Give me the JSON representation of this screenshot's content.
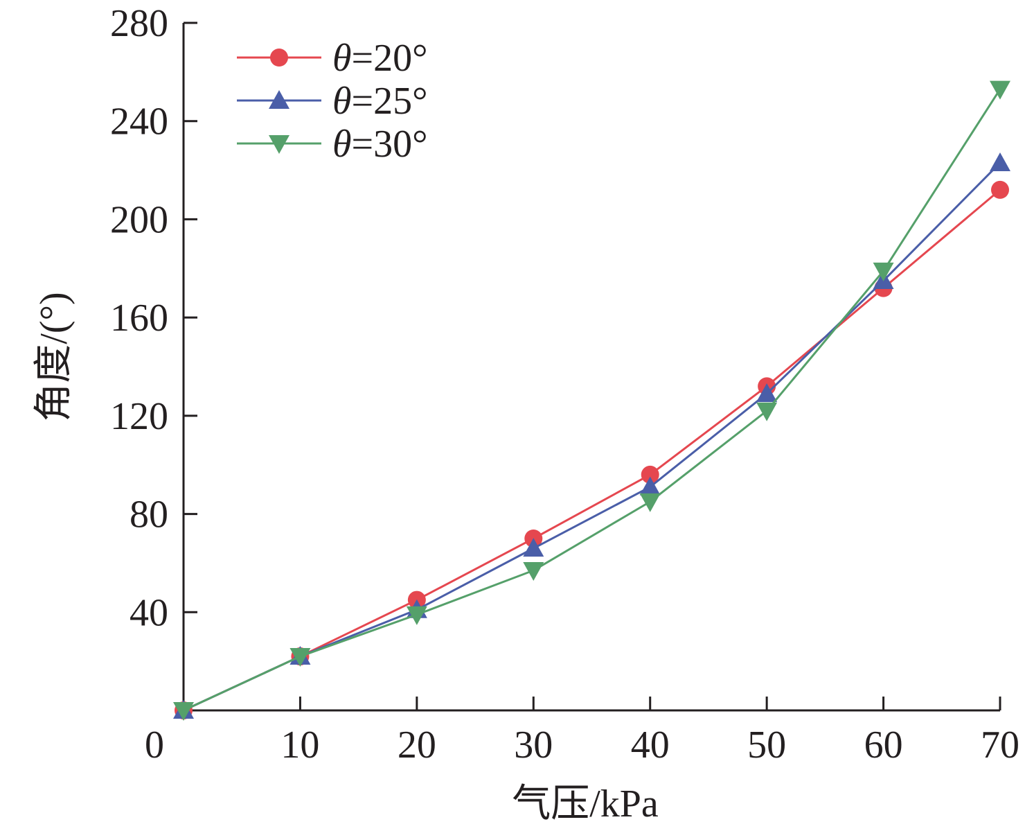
{
  "chart_data": {
    "type": "line",
    "title": "",
    "xlabel": "气压/kPa",
    "ylabel": "角度/(°)",
    "x": [
      0,
      10,
      20,
      30,
      40,
      50,
      60,
      70
    ],
    "xlim": [
      0,
      70
    ],
    "ylim": [
      0,
      280
    ],
    "x_ticks": [
      0,
      10,
      20,
      30,
      40,
      50,
      60,
      70
    ],
    "y_ticks": [
      40,
      80,
      120,
      160,
      200,
      240,
      280
    ],
    "grid": false,
    "legend_position": "top-left",
    "series": [
      {
        "name": "θ=20°",
        "symbol": "θ",
        "rest": "=20°",
        "marker": "circle",
        "color": "#e5474f",
        "values": [
          0,
          22,
          45,
          70,
          96,
          132,
          172,
          212
        ]
      },
      {
        "name": "θ=25°",
        "symbol": "θ",
        "rest": "=25°",
        "marker": "triangle-up",
        "color": "#4a5ea8",
        "values": [
          0,
          22,
          41,
          66,
          91,
          129,
          175,
          223
        ]
      },
      {
        "name": "θ=30°",
        "symbol": "θ",
        "rest": "=30°",
        "marker": "triangle-down",
        "color": "#55a06a",
        "values": [
          0,
          22,
          39,
          57,
          85,
          122,
          179,
          253
        ]
      }
    ]
  }
}
